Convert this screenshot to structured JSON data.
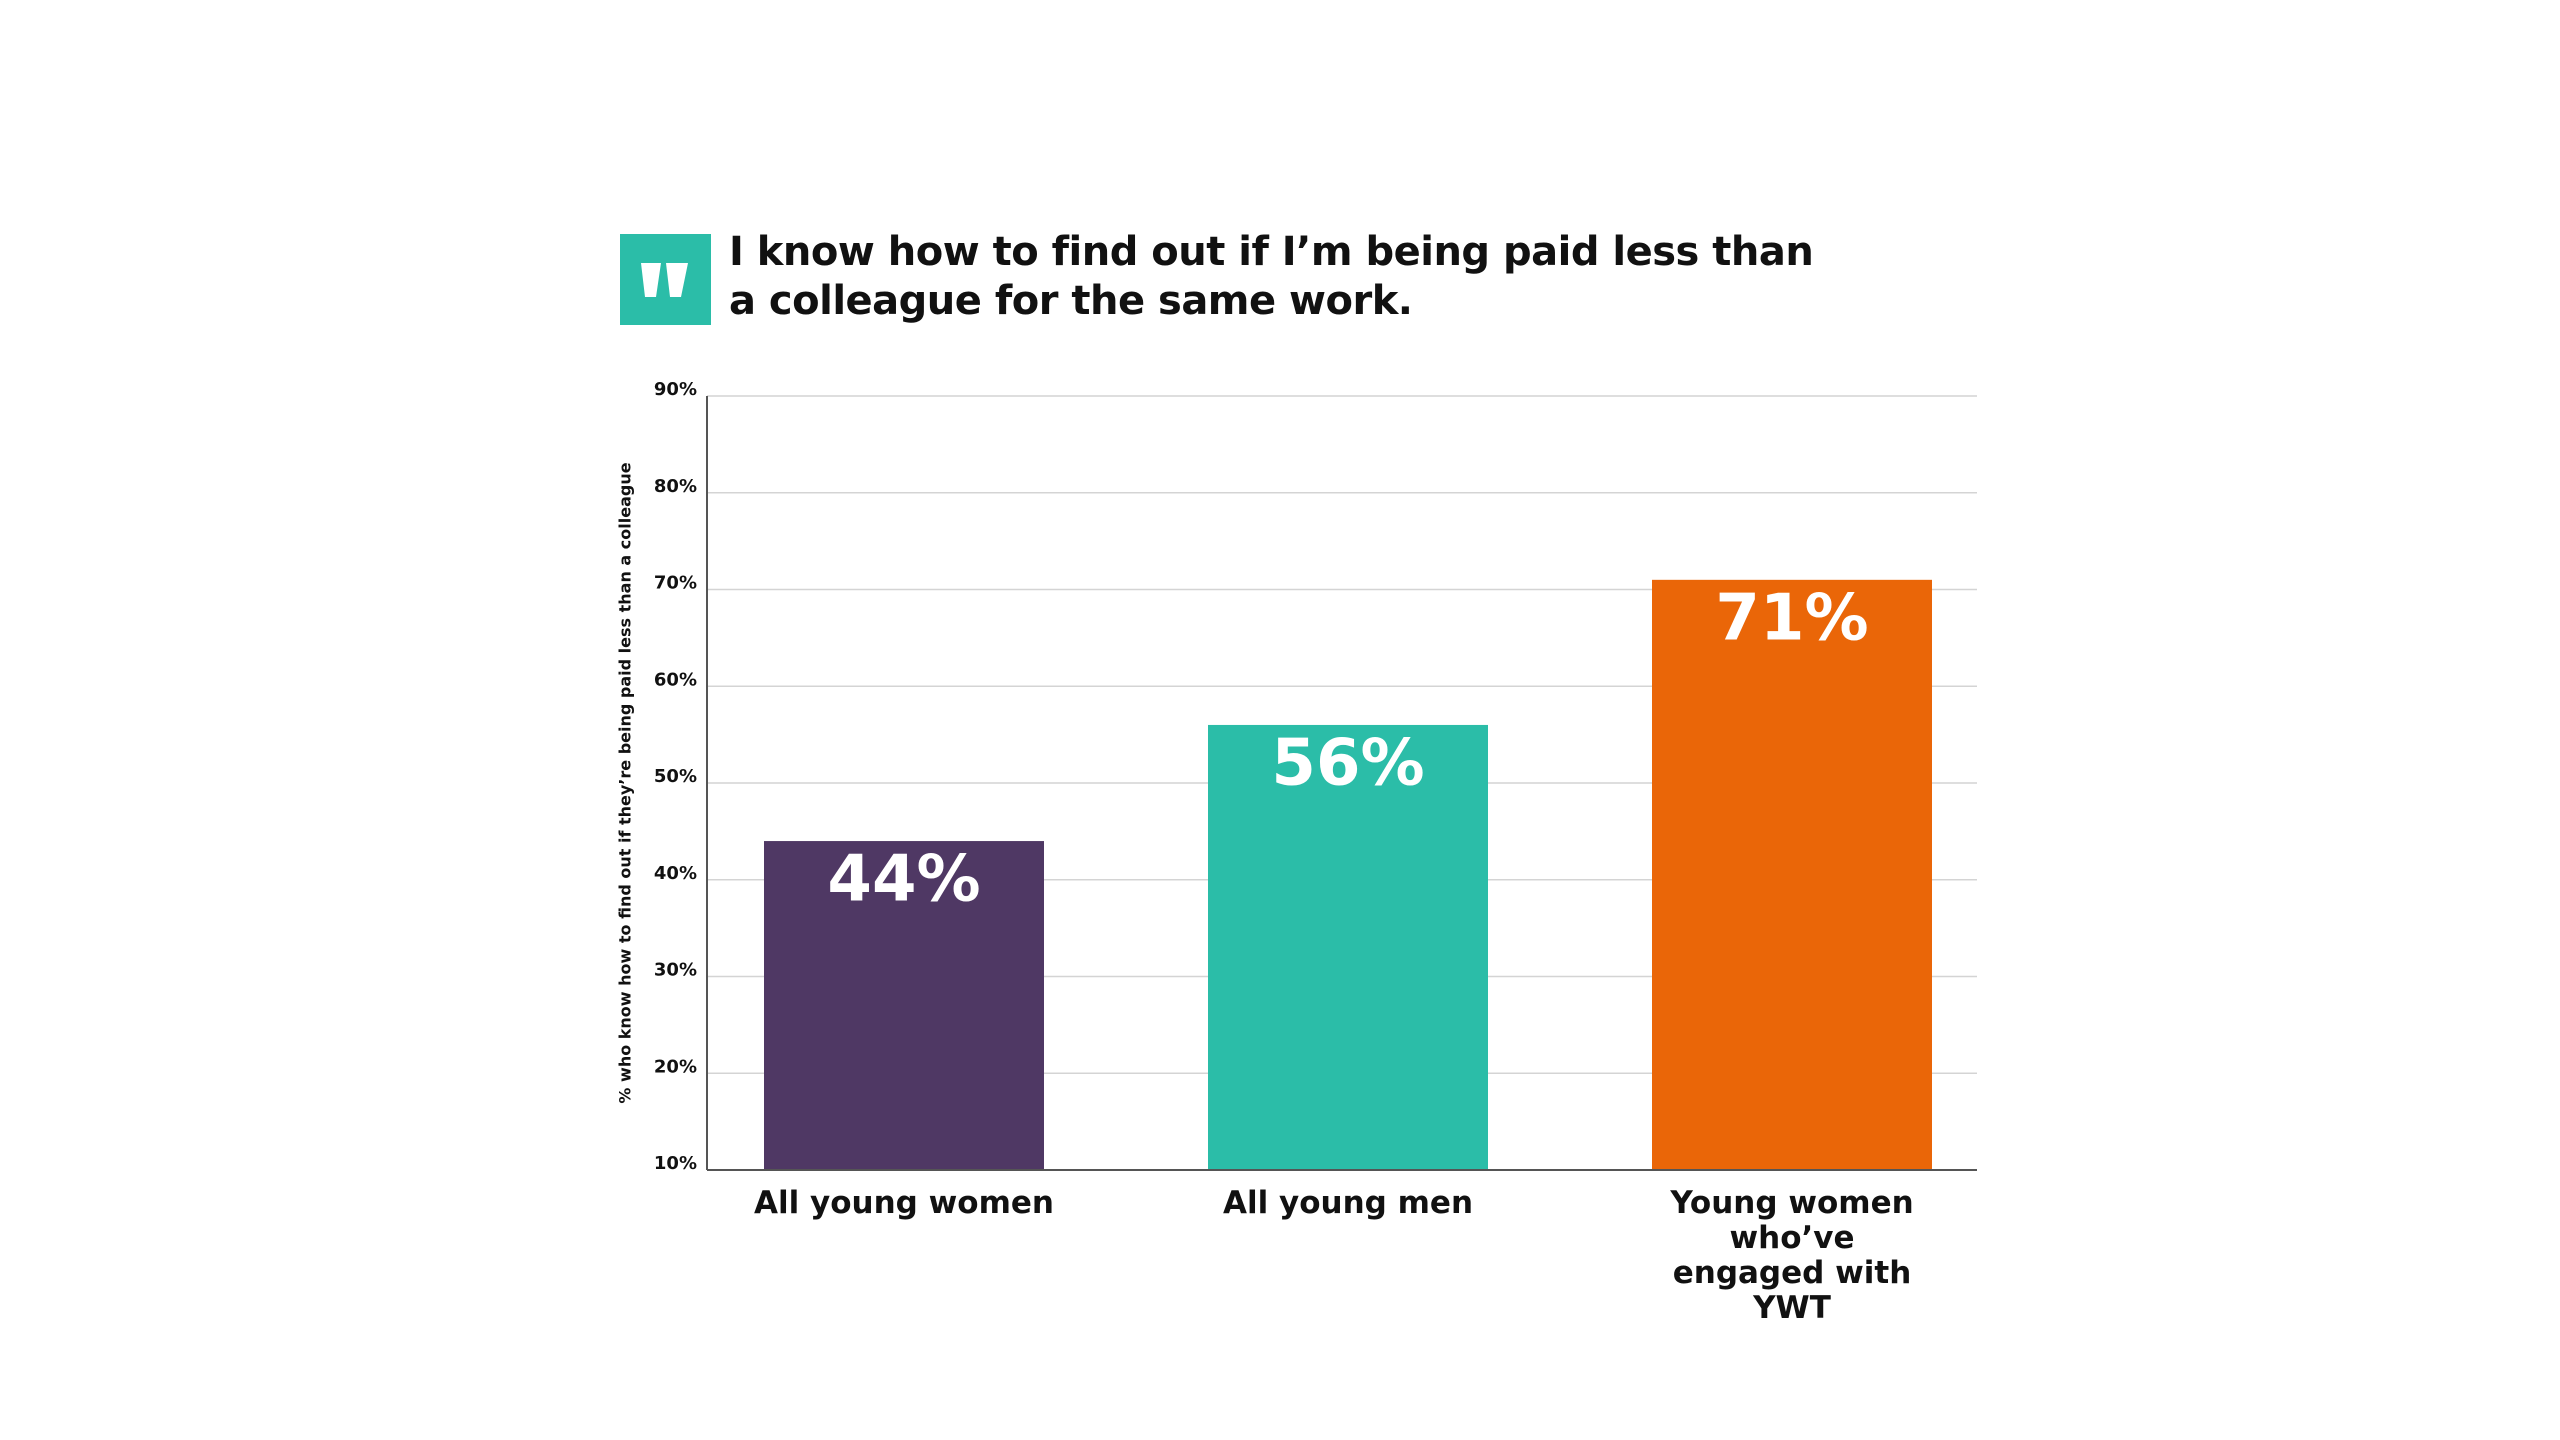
{
  "chart_data": {
    "type": "bar",
    "title": "I know how to find out if I’m being paid less than a colleague for the same work.",
    "y_label": "% who know how to find out if they’re being paid less than a colleague",
    "categories": [
      "All young women",
      "All young men",
      "Young women who’ve engaged with YWT"
    ],
    "values": [
      44,
      56,
      71
    ],
    "value_labels": [
      "44%",
      "56%",
      "71%"
    ],
    "colors": [
      "#4f3864",
      "#2bbda8",
      "#ea6608"
    ],
    "ylim": [
      10,
      90
    ],
    "yticks": [
      {
        "value": 10,
        "label": "10%"
      },
      {
        "value": 20,
        "label": "20%"
      },
      {
        "value": 30,
        "label": "30%"
      },
      {
        "value": 40,
        "label": "40%"
      },
      {
        "value": 50,
        "label": "50%"
      },
      {
        "value": 60,
        "label": "60%"
      },
      {
        "value": 70,
        "label": "70%"
      },
      {
        "value": 80,
        "label": "80%"
      },
      {
        "value": 90,
        "label": "90%"
      }
    ],
    "grid": true
  }
}
